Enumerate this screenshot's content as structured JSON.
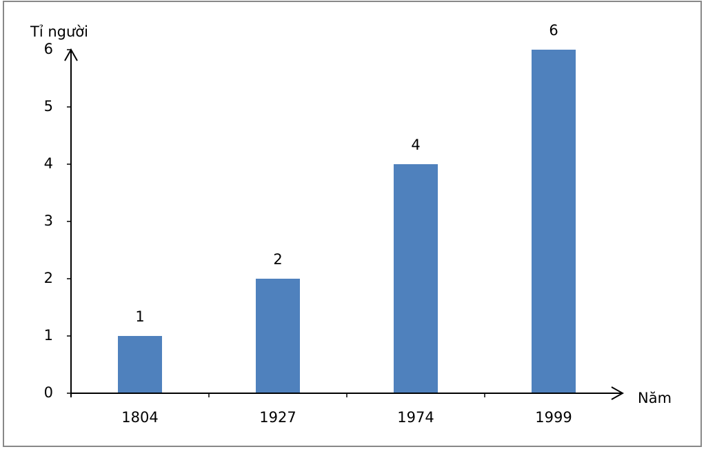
{
  "chart_data": {
    "type": "bar",
    "y_label": "Tỉ người",
    "x_label": "Năm",
    "categories": [
      "1804",
      "1927",
      "1974",
      "1999"
    ],
    "values": [
      1,
      2,
      4,
      6
    ],
    "color": "#4f81bd",
    "ylim": [
      0,
      6
    ],
    "yticks": [
      0,
      1,
      2,
      3,
      4,
      5,
      6
    ],
    "data_labels": true
  }
}
